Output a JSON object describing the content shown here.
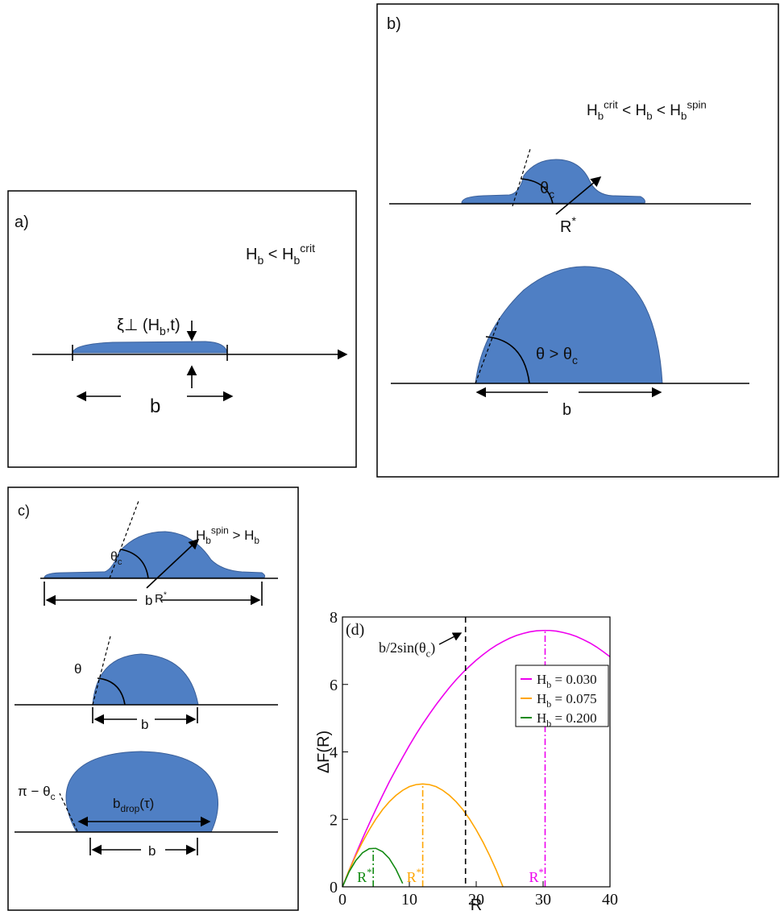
{
  "panel_a": {
    "label": "a)",
    "condition": [
      "H",
      {
        "sub": "b"
      },
      " < H",
      {
        "sub": "b"
      },
      {
        "sup": "crit"
      }
    ],
    "thickness": [
      "ξ⊥ (H",
      {
        "sub": "b"
      },
      ",t)"
    ],
    "width": "b"
  },
  "panel_b": {
    "label": "b)",
    "condition": [
      "H",
      {
        "sub": "b"
      },
      {
        "sup": "crit"
      },
      " < H",
      {
        "sub": "b"
      },
      " < H",
      {
        "sub": "b"
      },
      {
        "sup": "spin"
      }
    ],
    "angle_c": [
      "θ",
      {
        "sub": "c"
      }
    ],
    "radius": [
      "R",
      {
        "sup": "*"
      }
    ],
    "angle": [
      "θ > θ",
      {
        "sub": "c"
      }
    ],
    "width": "b"
  },
  "panel_c": {
    "label": "c)",
    "condition": [
      "H",
      {
        "sub": "b"
      },
      {
        "sup": "spin"
      },
      " > H",
      {
        "sub": "b"
      }
    ],
    "angle_c": [
      "θ",
      {
        "sub": "c"
      }
    ],
    "radius": [
      "R",
      {
        "sup": "*"
      }
    ],
    "width_1": "b",
    "angle": "θ",
    "width_2": "b",
    "angle_supp": [
      "π − θ",
      {
        "sub": "c"
      }
    ],
    "drop_width": [
      "b",
      {
        "sub": "drop"
      },
      "(τ)"
    ],
    "width_3": "b"
  },
  "chart_data": {
    "type": "line",
    "panel_label": "(d)",
    "xlabel": "R",
    "ylabel": "ΔF(R)",
    "xlim": [
      0,
      40
    ],
    "xticks": [
      0,
      10,
      20,
      30,
      40
    ],
    "ylim": [
      0,
      8
    ],
    "yticks": [
      0,
      2,
      4,
      6,
      8
    ],
    "legend": "right",
    "x": [
      0,
      1,
      2,
      3,
      4,
      5,
      6,
      7,
      8,
      9,
      10,
      11,
      12,
      13,
      14,
      15,
      16,
      17,
      18,
      19,
      20,
      21,
      22,
      23,
      24,
      25,
      26,
      27,
      28,
      29,
      30,
      31,
      32,
      33,
      34,
      35,
      36,
      37,
      38,
      39,
      40
    ],
    "series": [
      {
        "name": "Hb = 0.030",
        "color": "#ee00ee",
        "values": [
          0,
          0.49,
          0.97,
          1.43,
          1.87,
          2.3,
          2.71,
          3.11,
          3.48,
          3.84,
          4.19,
          4.52,
          4.83,
          5.12,
          5.4,
          5.66,
          5.91,
          6.14,
          6.35,
          6.54,
          6.72,
          6.88,
          7.03,
          7.16,
          7.27,
          7.37,
          7.45,
          7.51,
          7.56,
          7.59,
          7.6,
          7.6,
          7.58,
          7.54,
          7.49,
          7.42,
          7.33,
          7.23,
          7.11,
          6.97,
          6.82
        ]
      },
      {
        "name": "Hb = 0.075",
        "color": "#ffa500",
        "values": [
          0,
          0.49,
          0.93,
          1.33,
          1.69,
          2.01,
          2.29,
          2.52,
          2.71,
          2.86,
          2.97,
          3.03,
          3.05,
          3.03,
          2.97,
          2.86,
          2.71,
          2.52,
          2.29,
          2.01,
          1.69,
          1.33,
          0.93,
          0.49,
          0,
          null,
          null,
          null,
          null,
          null,
          null,
          null,
          null,
          null,
          null,
          null,
          null,
          null,
          null,
          null,
          null
        ]
      },
      {
        "name": "Hb = 0.200",
        "color": "#128a12",
        "values": [
          0,
          0.45,
          0.78,
          1.01,
          1.13,
          1.14,
          1.04,
          0.84,
          0.52,
          0.1,
          null,
          null,
          null,
          null,
          null,
          null,
          null,
          null,
          null,
          null,
          null,
          null,
          null,
          null,
          null,
          null,
          null,
          null,
          null,
          null,
          null,
          null,
          null,
          null,
          null,
          null,
          null,
          null,
          null,
          null,
          null
        ]
      }
    ],
    "markers": [
      {
        "x": 4.6,
        "top": 1.15,
        "color": "#128a12",
        "label": [
          "R",
          {
            "sup": "*"
          }
        ]
      },
      {
        "x": 12,
        "top": 3.05,
        "color": "#ffa500",
        "label": [
          "R",
          {
            "sup": "*"
          }
        ]
      },
      {
        "x": 30.3,
        "top": 7.6,
        "color": "#ee00ee",
        "label": [
          "R",
          {
            "sup": "*"
          }
        ]
      }
    ],
    "critical_x": 18.4,
    "annotation": [
      "b/2sin(θ",
      {
        "sub": "c"
      },
      ")"
    ]
  }
}
